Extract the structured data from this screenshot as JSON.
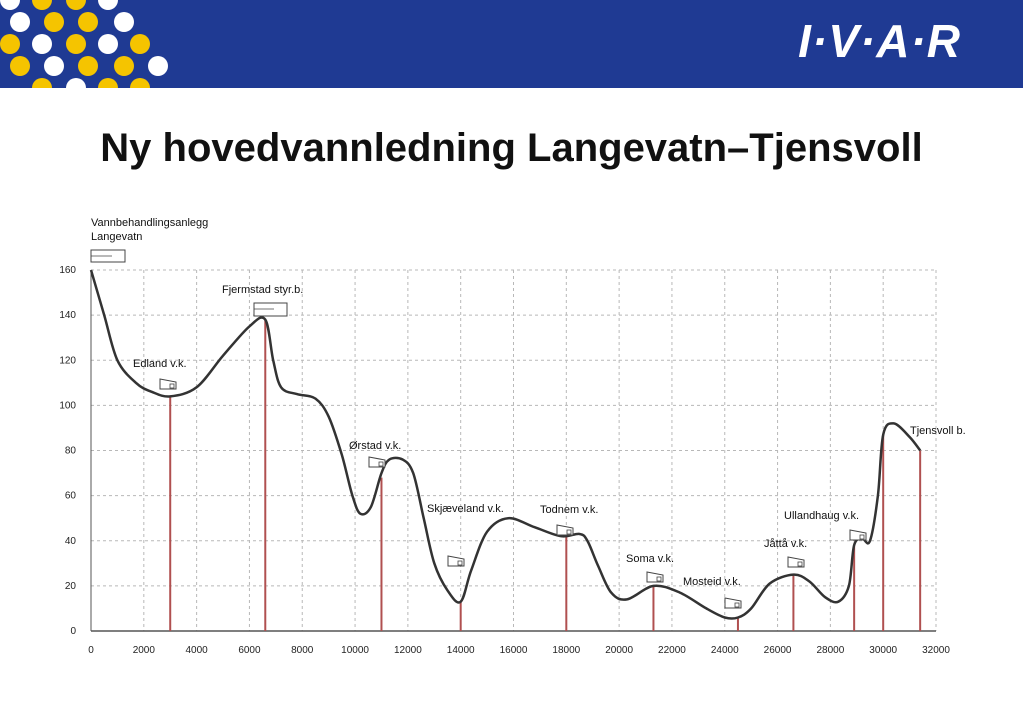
{
  "header": {
    "logo_text": "I·V·A·R",
    "bg_color": "#1f3a93",
    "dot_colors": [
      "#f5c400",
      "#ffffff"
    ]
  },
  "slide": {
    "title": "Ny hovedvannledning Langevatn–Tjensvoll"
  },
  "chart_data": {
    "type": "line",
    "title": "",
    "xlabel": "",
    "ylabel": "",
    "xlim": [
      0,
      32000
    ],
    "ylim": [
      0,
      160
    ],
    "x_ticks": [
      0,
      2000,
      4000,
      6000,
      8000,
      10000,
      12000,
      14000,
      16000,
      18000,
      20000,
      22000,
      24000,
      26000,
      28000,
      30000,
      32000
    ],
    "y_ticks": [
      0,
      20,
      40,
      60,
      80,
      100,
      120,
      140,
      160
    ],
    "grid": true,
    "line_color": "#333333",
    "stem_color": "#b05050",
    "series": [
      {
        "x": [
          0,
          500,
          1000,
          1700,
          2300,
          3000,
          4000,
          5000,
          6000,
          6600,
          6900,
          7200,
          7800,
          8500,
          9000,
          9500,
          9900,
          10200,
          10600,
          11000,
          11300,
          11800,
          12200,
          12600,
          13000,
          13500,
          14000,
          14400,
          15000,
          15800,
          16800,
          17800,
          18500,
          18800,
          19200,
          19700,
          20300,
          21300,
          22300,
          23300,
          24000,
          24500,
          25000,
          25700,
          26600,
          27200,
          27800,
          28300,
          28700,
          28900,
          29200,
          29500,
          29800,
          30000,
          30400,
          31000,
          31400
        ],
        "y": [
          160,
          140,
          120,
          110,
          106,
          104,
          108,
          122,
          135,
          138,
          120,
          108,
          105,
          103,
          95,
          78,
          60,
          52,
          55,
          70,
          76,
          76,
          70,
          50,
          30,
          18,
          13,
          27,
          44,
          50,
          46,
          42,
          43,
          40,
          29,
          17,
          14,
          20,
          17,
          10,
          6,
          6,
          10,
          21,
          25,
          22,
          15,
          13,
          20,
          38,
          41,
          40,
          60,
          87,
          92,
          86,
          80
        ]
      }
    ],
    "stations": [
      {
        "label": "Vannbehandlingsanlegg Langevatn",
        "label_lines": [
          "Vannbehandlingsanlegg",
          "Langevatn"
        ],
        "x": 0,
        "y": 160,
        "stem": false
      },
      {
        "label": "Edland v.k.",
        "x": 3000,
        "y": 104,
        "stem": true
      },
      {
        "label": "Fjermstad styr.b.",
        "x": 6600,
        "y": 138,
        "stem": true
      },
      {
        "label": "Ørstad v.k.",
        "x": 11000,
        "y": 68,
        "stem": true
      },
      {
        "label": "Skjæveland v.k.",
        "x": 14000,
        "y": 13,
        "stem": true
      },
      {
        "label": "Todnem v.k.",
        "x": 18000,
        "y": 42,
        "stem": true
      },
      {
        "label": "Soma v.k.",
        "x": 21300,
        "y": 20,
        "stem": true
      },
      {
        "label": "Mosteid v.k.",
        "x": 24500,
        "y": 6,
        "stem": true
      },
      {
        "label": "Jåttå v.k.",
        "x": 26600,
        "y": 25,
        "stem": true
      },
      {
        "label": "Ullandhaug v.k.",
        "x": 28900,
        "y": 38,
        "stem": true
      },
      {
        "label": "Tjensvoll b.",
        "x": 31400,
        "y": 80,
        "stem": true
      },
      {
        "label": "",
        "x": 30000,
        "y": 87,
        "stem": true
      }
    ]
  }
}
